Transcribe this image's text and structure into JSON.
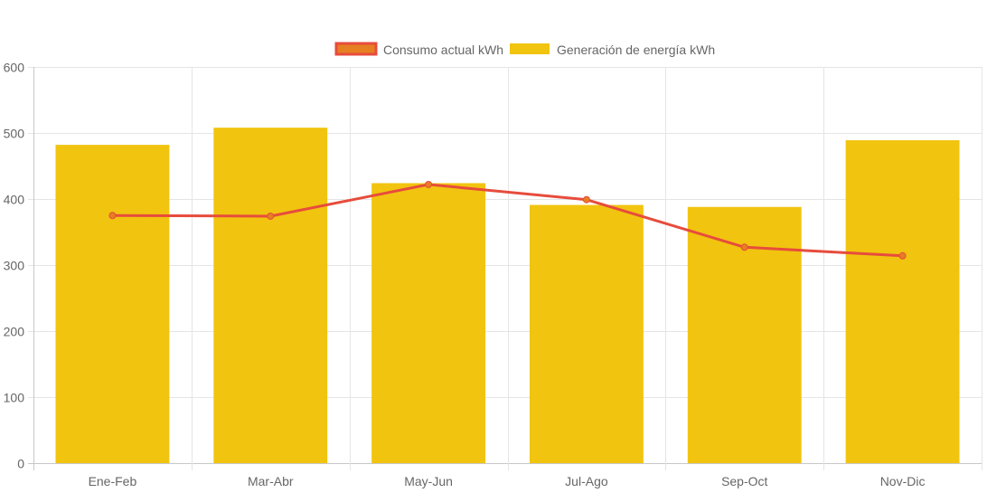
{
  "chart_data": {
    "type": "bar",
    "categories": [
      "Ene-Feb",
      "Mar-Abr",
      "May-Jun",
      "Jul-Ago",
      "Sep-Oct",
      "Nov-Dic"
    ],
    "series": [
      {
        "name": "Consumo actual kWh",
        "kind": "line",
        "color": "#e74c3c",
        "fill": "#e67e22",
        "values": [
          375,
          374,
          422,
          399,
          327,
          314
        ]
      },
      {
        "name": "Generación de energía kWh",
        "kind": "bar",
        "color": "#f1c40f",
        "values": [
          482,
          508,
          424,
          391,
          388,
          489
        ]
      }
    ],
    "ylim": [
      0,
      600
    ],
    "yticks": [
      0,
      100,
      200,
      300,
      400,
      500,
      600
    ],
    "grid": true,
    "legend_position": "top-center"
  }
}
